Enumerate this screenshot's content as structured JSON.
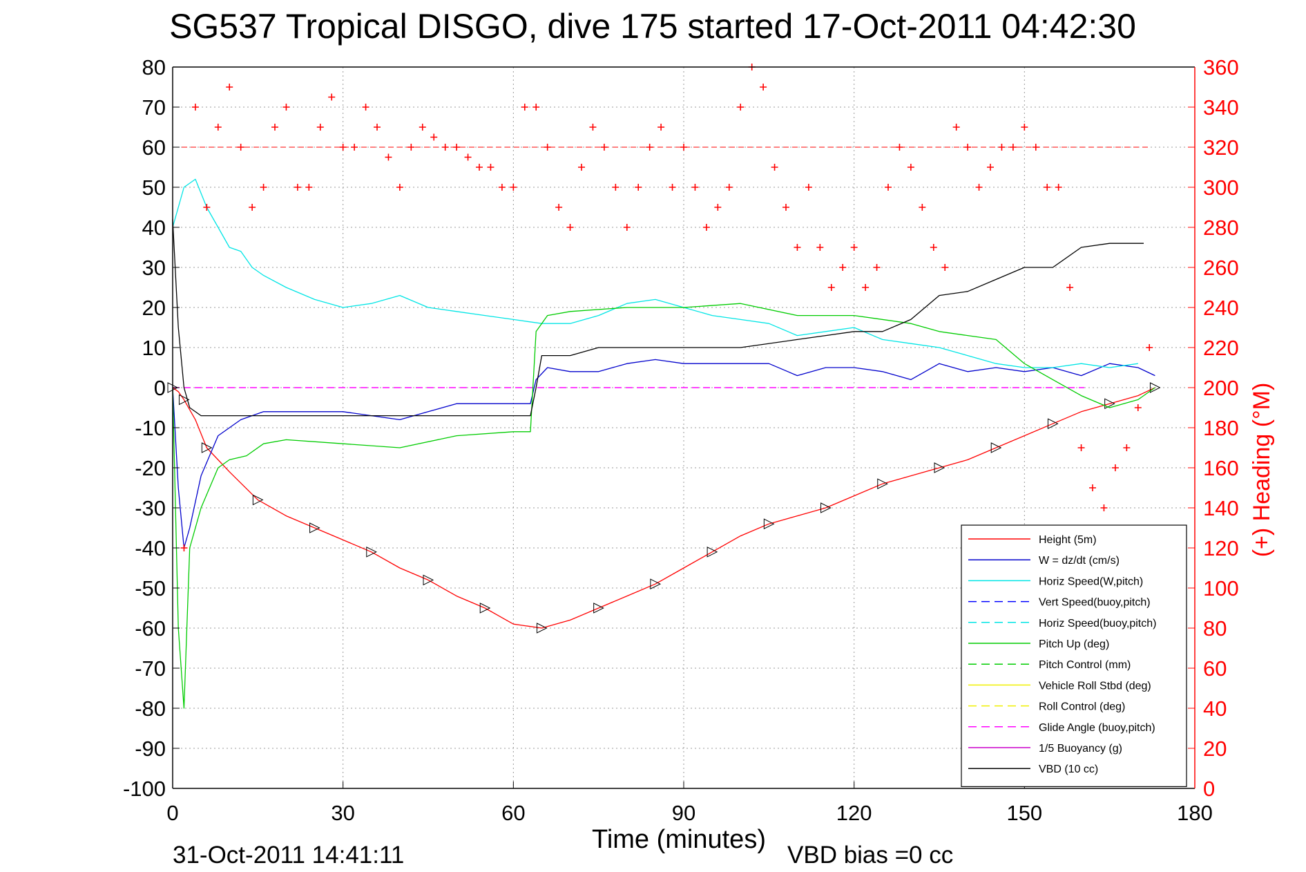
{
  "chart_data": {
    "type": "line",
    "title": "SG537 Tropical DISGO, dive 175 started 17-Oct-2011 04:42:30",
    "xlabel": "Time (minutes)",
    "ylabel_right": "(+) Heading (°M)",
    "footer_left": "31-Oct-2011 14:41:11",
    "footer_right": "VBD bias =0 cc",
    "xlim": [
      0,
      180
    ],
    "ylim": [
      -100,
      80
    ],
    "ylim_right": [
      0,
      360
    ],
    "x_ticks": [
      "0",
      "30",
      "60",
      "90",
      "120",
      "150",
      "180"
    ],
    "y_ticks": [
      "80",
      "70",
      "60",
      "50",
      "40",
      "30",
      "20",
      "10",
      "0",
      "-10",
      "-20",
      "-30",
      "-40",
      "-50",
      "-60",
      "-70",
      "-80",
      "-90",
      "-100"
    ],
    "y_ticks_right": [
      "360",
      "340",
      "320",
      "300",
      "280",
      "260",
      "240",
      "220",
      "200",
      "180",
      "160",
      "140",
      "120",
      "100",
      "80",
      "60",
      "40",
      "20",
      "0"
    ],
    "grid": true,
    "legend_position": "bottom-right",
    "colors": {
      "height": "#ff0000",
      "w": "#0000cc",
      "horiz": "#00e5e5",
      "pitch": "#00cc00",
      "roll": "#f0f000",
      "glide": "#ff00ff",
      "vbd": "#000000",
      "heading": "#ff0000"
    },
    "legend": [
      {
        "label": "Height (5m)",
        "color": "#ff0000",
        "dash": "solid"
      },
      {
        "label": "W = dz/dt (cm/s)",
        "color": "#0000cc",
        "dash": "solid"
      },
      {
        "label": "Horiz Speed(W,pitch)",
        "color": "#00e5e5",
        "dash": "solid"
      },
      {
        "label": "Vert Speed(buoy,pitch)",
        "color": "#0000ff",
        "dash": "dashed"
      },
      {
        "label": "Horiz Speed(buoy,pitch)",
        "color": "#00e5e5",
        "dash": "dashed"
      },
      {
        "label": "Pitch Up (deg)",
        "color": "#00cc00",
        "dash": "solid"
      },
      {
        "label": "Pitch Control (mm)",
        "color": "#00cc00",
        "dash": "dashed"
      },
      {
        "label": "Vehicle Roll Stbd (deg)",
        "color": "#f0f000",
        "dash": "solid"
      },
      {
        "label": "Roll Control (deg)",
        "color": "#f0f000",
        "dash": "dashed"
      },
      {
        "label": "Glide Angle (buoy,pitch)",
        "color": "#ff00ff",
        "dash": "dashed"
      },
      {
        "label": "1/5 Buoyancy (g)",
        "color": "#cc00cc",
        "dash": "solid"
      },
      {
        "label": "VBD (10 cc)",
        "color": "#000000",
        "dash": "solid"
      }
    ],
    "series": [
      {
        "key": "height",
        "x": [
          0,
          1,
          2,
          4,
          6,
          10,
          15,
          20,
          25,
          30,
          35,
          40,
          45,
          50,
          55,
          60,
          65,
          70,
          75,
          80,
          85,
          90,
          95,
          100,
          105,
          110,
          115,
          120,
          125,
          130,
          135,
          140,
          145,
          150,
          155,
          160,
          165,
          170,
          173
        ],
        "y": [
          0,
          -1,
          -3,
          -8,
          -15,
          -21,
          -28,
          -32,
          -35,
          -38,
          -41,
          -45,
          -48,
          -52,
          -55,
          -59,
          -60,
          -58,
          -55,
          -52,
          -49,
          -45,
          -41,
          -37,
          -34,
          -32,
          -30,
          -27,
          -24,
          -22,
          -20,
          -18,
          -15,
          -12,
          -9,
          -6,
          -4,
          -2,
          0
        ]
      },
      {
        "key": "w",
        "x": [
          0,
          1,
          2,
          3,
          5,
          8,
          12,
          16,
          20,
          25,
          30,
          35,
          40,
          45,
          50,
          55,
          60,
          63,
          64,
          66,
          70,
          75,
          80,
          85,
          90,
          95,
          100,
          105,
          110,
          115,
          120,
          125,
          130,
          135,
          140,
          145,
          150,
          155,
          160,
          165,
          170,
          173
        ],
        "y": [
          0,
          -25,
          -40,
          -35,
          -22,
          -12,
          -8,
          -6,
          -6,
          -6,
          -6,
          -7,
          -8,
          -6,
          -4,
          -4,
          -4,
          -4,
          2,
          5,
          4,
          4,
          6,
          7,
          6,
          6,
          6,
          6,
          3,
          5,
          5,
          4,
          2,
          6,
          4,
          5,
          4,
          5,
          3,
          6,
          5,
          3
        ]
      },
      {
        "key": "horiz",
        "x": [
          0,
          2,
          4,
          6,
          8,
          10,
          12,
          14,
          16,
          20,
          25,
          30,
          35,
          40,
          45,
          50,
          55,
          60,
          65,
          70,
          75,
          80,
          85,
          90,
          95,
          100,
          105,
          110,
          115,
          120,
          125,
          130,
          135,
          140,
          145,
          150,
          155,
          160,
          165,
          170
        ],
        "y": [
          40,
          50,
          52,
          45,
          40,
          35,
          34,
          30,
          28,
          25,
          22,
          20,
          21,
          23,
          20,
          19,
          18,
          17,
          16,
          16,
          18,
          21,
          22,
          20,
          18,
          17,
          16,
          13,
          14,
          15,
          12,
          11,
          10,
          8,
          6,
          5,
          5,
          6,
          5,
          6
        ]
      },
      {
        "key": "pitch",
        "x": [
          0,
          1,
          2,
          3,
          5,
          8,
          10,
          13,
          16,
          20,
          30,
          40,
          50,
          60,
          63,
          64,
          66,
          70,
          80,
          90,
          100,
          110,
          120,
          130,
          135,
          140,
          145,
          150,
          155,
          160,
          165,
          170,
          173
        ],
        "y": [
          0,
          -60,
          -80,
          -40,
          -30,
          -20,
          -18,
          -17,
          -14,
          -13,
          -14,
          -15,
          -12,
          -11,
          -11,
          14,
          18,
          19,
          20,
          20,
          21,
          18,
          18,
          16,
          14,
          13,
          12,
          6,
          2,
          -2,
          -5,
          -3,
          0
        ]
      },
      {
        "key": "vbd",
        "x": [
          0,
          1,
          2,
          3,
          5,
          8,
          15,
          30,
          45,
          63,
          64,
          65,
          70,
          75,
          80,
          90,
          100,
          110,
          115,
          120,
          125,
          130,
          135,
          140,
          145,
          150,
          155,
          160,
          165,
          170,
          171
        ],
        "y": [
          42,
          15,
          0,
          -5,
          -7,
          -7,
          -7,
          -7,
          -7,
          -7,
          0,
          8,
          8,
          10,
          10,
          10,
          10,
          12,
          13,
          14,
          14,
          17,
          23,
          24,
          27,
          30,
          30,
          35,
          36,
          36,
          36
        ]
      },
      {
        "key": "heading",
        "axis": "right",
        "x": [
          2,
          4,
          6,
          8,
          10,
          12,
          14,
          16,
          18,
          20,
          22,
          24,
          26,
          28,
          30,
          32,
          34,
          36,
          38,
          40,
          42,
          44,
          46,
          48,
          50,
          52,
          54,
          56,
          58,
          60,
          62,
          64,
          66,
          68,
          70,
          72,
          74,
          76,
          78,
          80,
          82,
          84,
          86,
          88,
          90,
          92,
          94,
          96,
          98,
          100,
          102,
          104,
          106,
          108,
          110,
          112,
          114,
          116,
          118,
          120,
          122,
          124,
          126,
          128,
          130,
          132,
          134,
          136,
          138,
          140,
          142,
          144,
          146,
          148,
          150,
          152,
          154,
          156,
          158,
          160,
          162,
          164,
          166,
          168,
          170,
          172
        ],
        "y": [
          120,
          340,
          290,
          330,
          350,
          320,
          290,
          300,
          330,
          340,
          300,
          300,
          330,
          345,
          320,
          320,
          340,
          330,
          315,
          300,
          320,
          330,
          325,
          320,
          320,
          315,
          310,
          310,
          300,
          300,
          340,
          340,
          320,
          290,
          280,
          310,
          330,
          320,
          300,
          280,
          300,
          320,
          330,
          300,
          320,
          300,
          280,
          290,
          300,
          340,
          360,
          350,
          310,
          290,
          270,
          300,
          270,
          250,
          260,
          270,
          250,
          260,
          300,
          320,
          310,
          290,
          270,
          260,
          330,
          320,
          300,
          310,
          320,
          320,
          330,
          320,
          300,
          300,
          250,
          170,
          150,
          140,
          160,
          170,
          190,
          220
        ]
      }
    ]
  }
}
